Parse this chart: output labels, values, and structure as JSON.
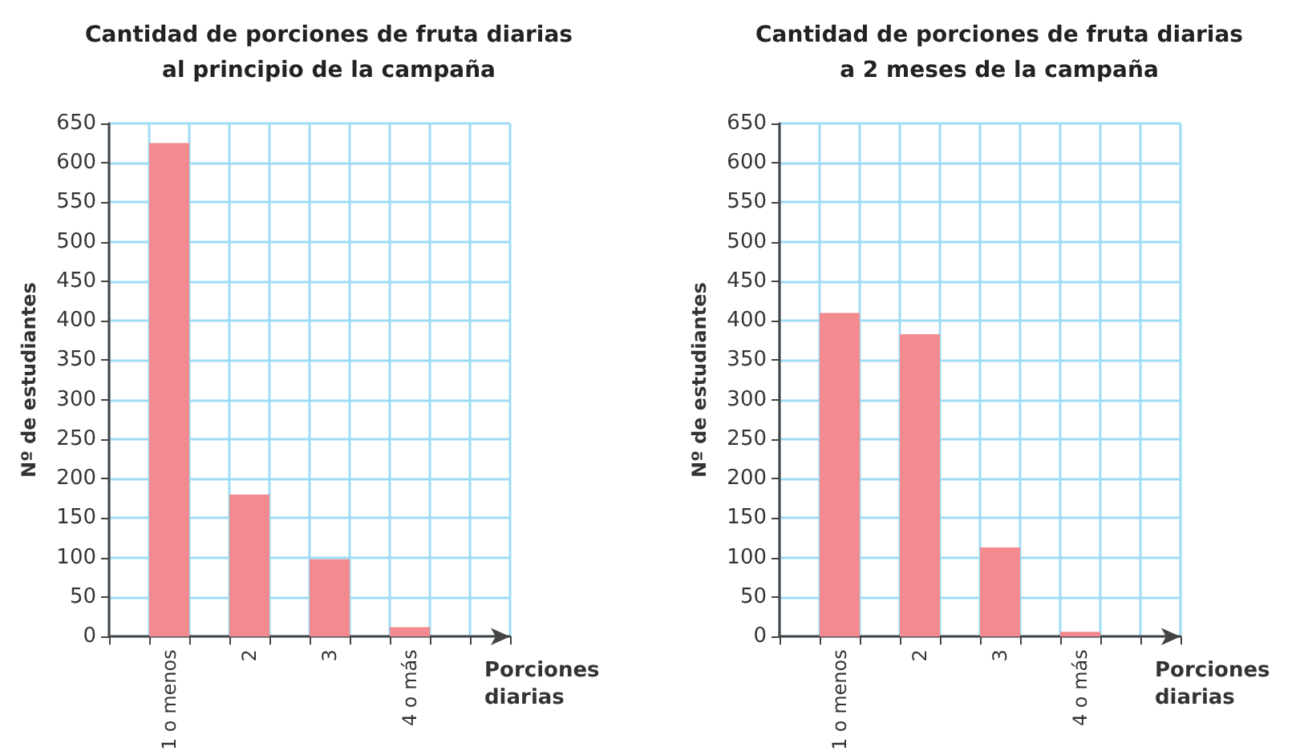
{
  "chart_data": [
    {
      "type": "bar",
      "title": "Cantidad de porciones de fruta diarias\nal principio de la campaña",
      "xlabel": "Porciones diarias",
      "ylabel": "Nº de estudiantes",
      "categories": [
        null,
        "1 o menos",
        null,
        "2",
        null,
        "3",
        null,
        "4 o más",
        null,
        null
      ],
      "values": [
        null,
        625,
        null,
        180,
        null,
        98,
        null,
        12,
        null,
        null
      ],
      "color": "#f28a8f",
      "ylim": [
        0,
        650
      ],
      "yticks": [
        0,
        50,
        100,
        150,
        200,
        250,
        300,
        350,
        400,
        450,
        500,
        550,
        600,
        650
      ],
      "grid": true
    },
    {
      "type": "bar",
      "title": "Cantidad de porciones de fruta diarias\na 2 meses de la campaña",
      "xlabel": "Porciones diarias",
      "ylabel": "Nº de estudiantes",
      "categories": [
        null,
        "1 o menos",
        null,
        "2",
        null,
        "3",
        null,
        "4 o más",
        null,
        null
      ],
      "values": [
        null,
        410,
        null,
        383,
        null,
        113,
        null,
        6,
        null,
        null
      ],
      "color": "#f28a8f",
      "ylim": [
        0,
        650
      ],
      "yticks": [
        0,
        50,
        100,
        150,
        200,
        250,
        300,
        350,
        400,
        450,
        500,
        550,
        600,
        650
      ],
      "grid": true
    }
  ]
}
